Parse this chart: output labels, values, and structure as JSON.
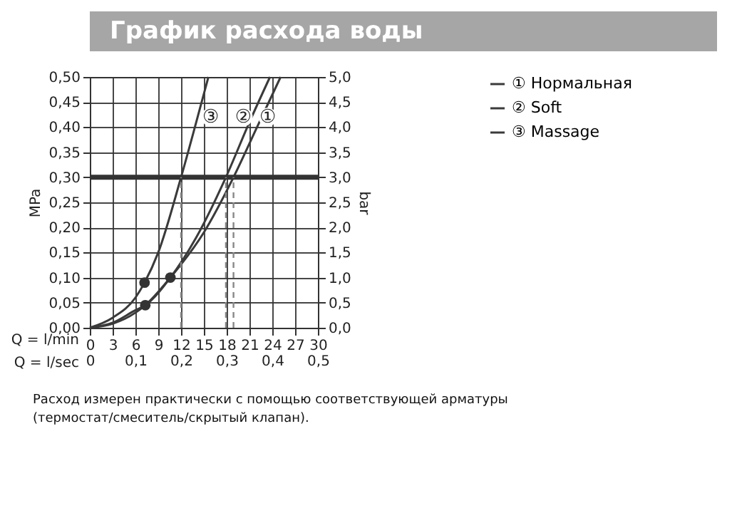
{
  "chart_data": {
    "type": "line",
    "title": "График расхода воды",
    "xlabel": "Q = l/min",
    "x2label": "Q = l/sec",
    "ylabel": "MPa",
    "y2label": "bar",
    "xlim": [
      0,
      30
    ],
    "xticks": [
      0,
      3,
      6,
      9,
      12,
      15,
      18,
      21,
      24,
      27,
      30
    ],
    "x2lim": [
      0,
      0.5
    ],
    "x2ticks": [
      0,
      {
        "value": 0.1,
        "label": "0,1"
      },
      {
        "value": 0.2,
        "label": "0,2"
      },
      {
        "value": 0.3,
        "label": "0,3"
      },
      {
        "value": 0.4,
        "label": "0,4"
      },
      {
        "value": 0.5,
        "label": "0,5"
      }
    ],
    "ylim": [
      0,
      0.5
    ],
    "yticks": [
      {
        "value": 0,
        "label": "0,00"
      },
      {
        "value": 0.05,
        "label": "0,05"
      },
      {
        "value": 0.1,
        "label": "0,10"
      },
      {
        "value": 0.15,
        "label": "0,15"
      },
      {
        "value": 0.2,
        "label": "0,20"
      },
      {
        "value": 0.25,
        "label": "0,25"
      },
      {
        "value": 0.3,
        "label": "0,30"
      },
      {
        "value": 0.35,
        "label": "0,35"
      },
      {
        "value": 0.4,
        "label": "0,40"
      },
      {
        "value": 0.45,
        "label": "0,45"
      },
      {
        "value": 0.5,
        "label": "0,50"
      }
    ],
    "y2lim": [
      0,
      5
    ],
    "y2ticks": [
      {
        "value": 0,
        "label": "0,0"
      },
      {
        "value": 0.5,
        "label": "0,5"
      },
      {
        "value": 1,
        "label": "1,0"
      },
      {
        "value": 1.5,
        "label": "1,5"
      },
      {
        "value": 2,
        "label": "2,0"
      },
      {
        "value": 2.5,
        "label": "2,5"
      },
      {
        "value": 3,
        "label": "3,0"
      },
      {
        "value": 3.5,
        "label": "3,5"
      },
      {
        "value": 4,
        "label": "4,0"
      },
      {
        "value": 4.5,
        "label": "4,5"
      },
      {
        "value": 5,
        "label": "5,0"
      }
    ],
    "grid": true,
    "legend": "top right",
    "marker": "none",
    "line_style": "solid",
    "series": [
      {
        "name": "① Нормальная",
        "color": "#3a3a3a",
        "x": [
          0,
          3,
          6,
          7.3,
          10.6,
          15,
          18.9,
          22,
          25.1
        ],
        "values": [
          0,
          0.008,
          0.03,
          0.045,
          0.1,
          0.19,
          0.3,
          0.4,
          0.5
        ]
      },
      {
        "name": "② Soft",
        "color": "#3a3a3a",
        "x": [
          0,
          3,
          6,
          7.3,
          10.6,
          14,
          17.9,
          21,
          23.7
        ],
        "values": [
          0,
          0.01,
          0.035,
          0.045,
          0.1,
          0.18,
          0.3,
          0.41,
          0.5
        ]
      },
      {
        "name": "③ Massage",
        "color": "#3a3a3a",
        "x": [
          0,
          3,
          6,
          7.2,
          9,
          12,
          14,
          15.6
        ],
        "values": [
          0,
          0.02,
          0.06,
          0.09,
          0.15,
          0.3,
          0.41,
          0.5
        ]
      },
      {
        "type": "scatter",
        "marker": "circle",
        "color": "#333333",
        "x": [
          7.2,
          10.6,
          7.3
        ],
        "values": [
          0.09,
          0.1,
          0.045
        ]
      }
    ],
    "ref_lines": [
      {
        "axis": "y",
        "value": 0.3,
        "color": "#333333",
        "line_style": "solid"
      },
      {
        "axis": "x",
        "value": 12,
        "color": "#888888",
        "line_style": "dashed"
      },
      {
        "axis": "x",
        "value": 17.9,
        "color": "#888888",
        "line_style": "dashed"
      },
      {
        "axis": "x",
        "value": 18.9,
        "color": "#888888",
        "line_style": "dashed"
      }
    ],
    "annotations": [
      {
        "text": "③",
        "x": 15.9,
        "y": 0.42
      },
      {
        "text": "②",
        "x": 20.2,
        "y": 0.42
      },
      {
        "text": "①",
        "x": 23.4,
        "y": 0.42
      },
      "Расход измерен практически с помощью соответствующей арматуры (термостат/смеситель/скрытый клапан)."
    ]
  }
}
